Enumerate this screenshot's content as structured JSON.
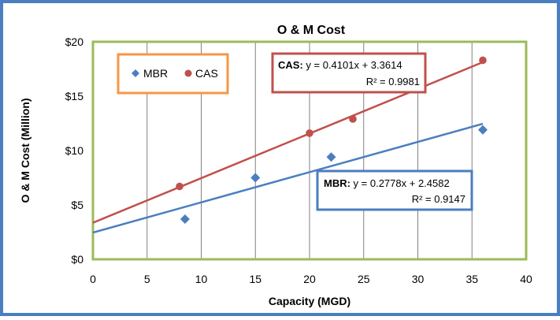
{
  "chart_data": {
    "type": "scatter",
    "title": "O & M Cost",
    "xlabel": "Capacity (MGD)",
    "ylabel": "O & M Cost (Million)",
    "xlim": [
      0,
      40
    ],
    "ylim": [
      0,
      20
    ],
    "x_ticks": [
      0,
      5,
      10,
      15,
      20,
      25,
      30,
      35,
      40
    ],
    "x_tick_labels": [
      "0",
      "5",
      "10",
      "15",
      "20",
      "25",
      "30",
      "35",
      "40"
    ],
    "y_ticks": [
      0,
      5,
      10,
      15,
      20
    ],
    "y_tick_labels": [
      "$0",
      "$5",
      "$10",
      "$15",
      "$20"
    ],
    "grid": "vertical",
    "legend_position": "top-left",
    "series": [
      {
        "name": "MBR",
        "marker": "diamond",
        "color": "#4a7ebf",
        "points": [
          {
            "x": 8.5,
            "y": 3.7
          },
          {
            "x": 15,
            "y": 7.5
          },
          {
            "x": 22,
            "y": 9.4
          },
          {
            "x": 36,
            "y": 11.9
          }
        ],
        "trendline": {
          "slope": 0.2778,
          "intercept": 2.4582,
          "x_range": [
            0,
            36
          ]
        },
        "equation": {
          "label": "MBR:",
          "text": " y = 0.2778x + 2.4582",
          "r2": "R² = 0.9147",
          "border_color": "#4a7ebf"
        }
      },
      {
        "name": "CAS",
        "marker": "circle",
        "color": "#c0504d",
        "points": [
          {
            "x": 8,
            "y": 6.7
          },
          {
            "x": 20,
            "y": 11.6
          },
          {
            "x": 24,
            "y": 12.9
          },
          {
            "x": 36,
            "y": 18.3
          }
        ],
        "trendline": {
          "slope": 0.4101,
          "intercept": 3.3614,
          "x_range": [
            0,
            36
          ]
        },
        "equation": {
          "label": "CAS:",
          "text": " y = 0.4101x + 3.3614",
          "r2": "R² = 0.9981",
          "border_color": "#c0504d"
        }
      }
    ]
  },
  "colors": {
    "outer_border": "#4a7ebf",
    "plot_border": "#9bbb59",
    "legend_border": "#f79646",
    "grid": "#808080"
  }
}
